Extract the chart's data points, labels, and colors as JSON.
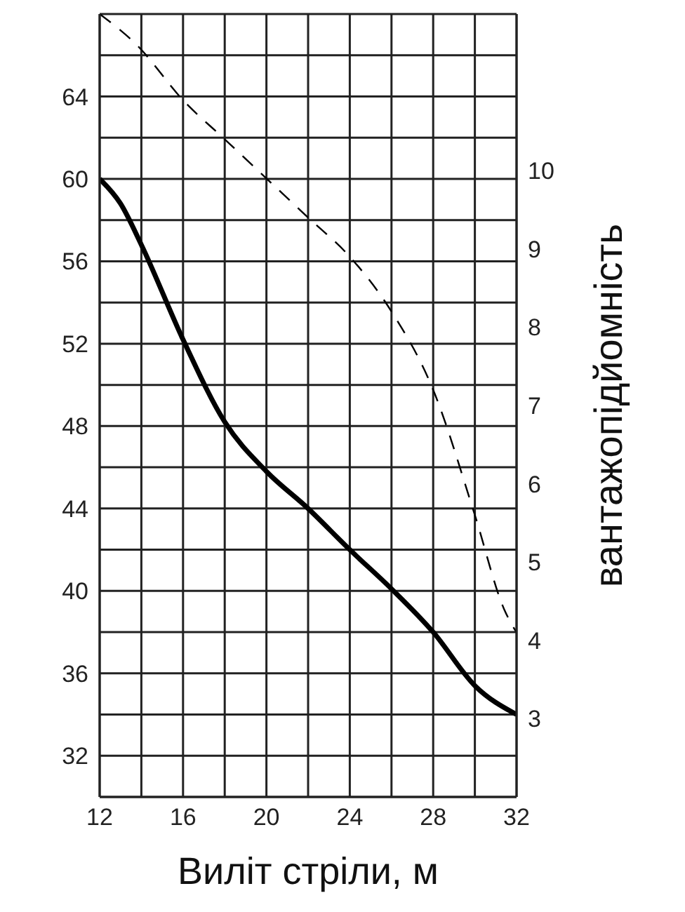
{
  "chart_data": {
    "type": "line",
    "xlabel": "Виліт стріли, м",
    "y2label": "вантажопідйомність",
    "xlim": [
      12,
      32
    ],
    "xticks": [
      12,
      {
        "value": 14,
        "label": null
      },
      16,
      {
        "value": 18,
        "label": null
      },
      20,
      {
        "value": 22,
        "label": null
      },
      24,
      {
        "value": 26,
        "label": null
      },
      28,
      {
        "value": 30,
        "label": null
      },
      32
    ],
    "ylim": [
      30,
      68
    ],
    "yticks": [
      {
        "value": 30,
        "label": null
      },
      32,
      {
        "value": 34,
        "label": null
      },
      36,
      {
        "value": 38,
        "label": null
      },
      40,
      {
        "value": 42,
        "label": null
      },
      44,
      {
        "value": 46,
        "label": null
      },
      48,
      {
        "value": 50,
        "label": null
      },
      52,
      {
        "value": 54,
        "label": null
      },
      56,
      {
        "value": 58,
        "label": null
      },
      60,
      {
        "value": 62,
        "label": null
      },
      64,
      {
        "value": 66,
        "label": null
      },
      {
        "value": 68,
        "label": null
      }
    ],
    "y2lim": [
      2,
      12
    ],
    "y2ticks": [
      3,
      4,
      5,
      6,
      7,
      8,
      9,
      10
    ],
    "grid": true,
    "marker": "none",
    "series": [
      {
        "color": "#000000",
        "line_style": "solid",
        "x": [
          12,
          13,
          14,
          16,
          18,
          20,
          22,
          24,
          26,
          28,
          30,
          32
        ],
        "values": [
          60,
          58.8,
          56.8,
          52.2,
          48.2,
          45.8,
          44,
          42,
          40.1,
          38,
          35.4,
          34
        ]
      },
      {
        "color": "#000000",
        "line_style": "dashed",
        "axis": "y2",
        "x": [
          12,
          13.8,
          16,
          18,
          20,
          22,
          24,
          26,
          28,
          30,
          31.4,
          32
        ],
        "values": [
          12,
          11.6,
          10.9,
          10.4,
          9.9,
          9.4,
          8.9,
          8.2,
          7.2,
          5.6,
          4.4,
          4.1
        ]
      }
    ]
  }
}
